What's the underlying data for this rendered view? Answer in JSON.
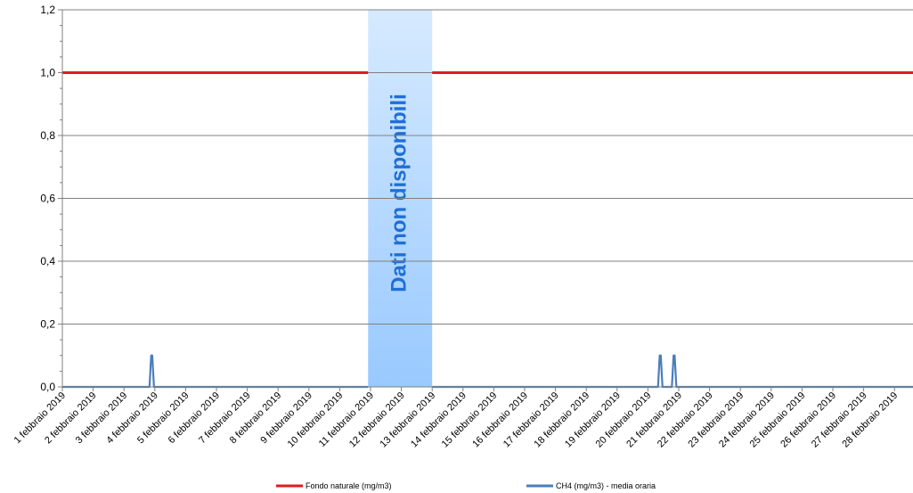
{
  "chart_data": {
    "type": "line",
    "ylim": [
      0,
      1.2
    ],
    "yticks": [
      "0,0",
      "0,2",
      "0,4",
      "0,6",
      "0,8",
      "1,0",
      "1,2"
    ],
    "ytick_values": [
      0,
      0.2,
      0.4,
      0.6,
      0.8,
      1.0,
      1.2
    ],
    "categories": [
      "1 febbraio 2019",
      "2 febbraio 2019",
      "3 febbraio 2019",
      "4 febbraio 2019",
      "5 febbraio 2019",
      "6 febbraio 2019",
      "7 febbraio 2019",
      "8 febbraio 2019",
      "9 febbraio 2019",
      "10 febbraio 2019",
      "11 febbraio 2019",
      "12 febbraio 2019",
      "13 febbraio 2019",
      "14 febbraio 2019",
      "15 febbraio 2019",
      "16 febbraio 2019",
      "17 febbraio 2019",
      "18 febbraio 2019",
      "19 febbraio 2019",
      "20 febbraio 2019",
      "21 febbraio 2019",
      "22 febbraio 2019",
      "23 febbraio 2019",
      "24 febbraio 2019",
      "25 febbraio 2019",
      "26 febbraio 2019",
      "27 febbraio 2019",
      "28 febbraio 2019"
    ],
    "unavailable_band": {
      "from_day": 11,
      "to_day": 13,
      "label": "Dati non disponibili"
    },
    "series": [
      {
        "name": "Fondo naturale  (mg/m3)",
        "color": "#e31a1c",
        "style": "constant",
        "value": 1.0
      },
      {
        "name": "CH4 (mg/m3)  - media oraria",
        "color": "#4a7ebb",
        "style": "hourly",
        "baseline": 0.0,
        "peaks": [
          {
            "day": 3.9,
            "value": 0.1
          },
          {
            "day": 20.4,
            "value": 0.1
          },
          {
            "day": 20.85,
            "value": 0.1
          }
        ]
      }
    ],
    "grid": true,
    "legend": "bottom-center"
  }
}
